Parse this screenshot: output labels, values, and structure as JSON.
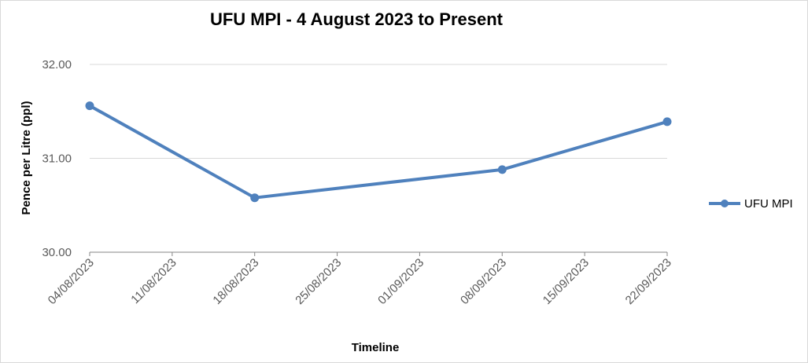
{
  "chart_data": {
    "type": "line",
    "title": "UFU MPI -  4 August 2023 to Present",
    "xlabel": "Timeline",
    "ylabel": "Pence per Litre (ppl)",
    "x_ticks": [
      "04/08/2023",
      "11/08/2023",
      "18/08/2023",
      "25/08/2023",
      "01/09/2023",
      "08/09/2023",
      "15/09/2023",
      "22/09/2023"
    ],
    "y_ticks": [
      "30.00",
      "31.00",
      "32.00"
    ],
    "ylim": [
      30,
      32
    ],
    "xlim": [
      "04/08/2023",
      "22/09/2023"
    ],
    "grid": true,
    "legend_position": "right",
    "series": [
      {
        "name": "UFU MPI",
        "color": "#4f81bd",
        "points": [
          {
            "x": "04/08/2023",
            "y": 31.56
          },
          {
            "x": "18/08/2023",
            "y": 30.58
          },
          {
            "x": "08/09/2023",
            "y": 30.88
          },
          {
            "x": "22/09/2023",
            "y": 31.39
          }
        ]
      }
    ]
  }
}
